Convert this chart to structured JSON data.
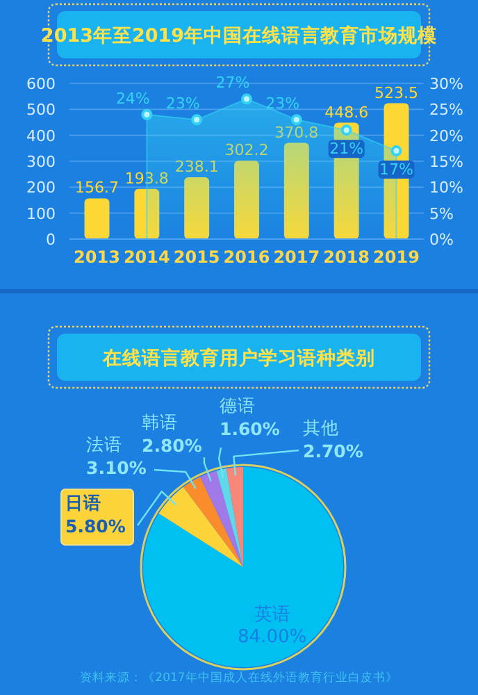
{
  "chart_data": [
    {
      "type": "bar",
      "title": "2013年至2019年中国在线语言教育市场规模",
      "categories": [
        "2013",
        "2014",
        "2015",
        "2016",
        "2017",
        "2018",
        "2019"
      ],
      "series": [
        {
          "type": "bar",
          "color": "#fdd835",
          "values": [
            156.7,
            193.8,
            238.1,
            302.2,
            370.8,
            448.6,
            523.5
          ]
        },
        {
          "type": "area",
          "axis": "y2",
          "color": "#34d3f4",
          "marker": "circle",
          "values": [
            null,
            24,
            23,
            27,
            23,
            21,
            17
          ],
          "value_labels": [
            null,
            "24%",
            "23%",
            "27%",
            "23%",
            "21%",
            "17%"
          ]
        }
      ],
      "ylim": [
        0,
        600
      ],
      "yticks": [
        0,
        100,
        200,
        300,
        400,
        500,
        600
      ],
      "y2lim": [
        0,
        30
      ],
      "y2ticks": [
        {
          "value": 0,
          "label": "0%"
        },
        {
          "value": 5,
          "label": "5%"
        },
        {
          "value": 10,
          "label": "10%"
        },
        {
          "value": 15,
          "label": "15%"
        },
        {
          "value": 20,
          "label": "20%"
        },
        {
          "value": 25,
          "label": "25%"
        },
        {
          "value": 30,
          "label": "30%"
        }
      ],
      "grid": "y",
      "data_labels": true
    },
    {
      "type": "pie",
      "title": "在线语言教育用户学习语种类别",
      "categories": [
        "英语",
        "日语",
        "法语",
        "韩语",
        "德语",
        "其他"
      ],
      "values": [
        84,
        5.8,
        3.1,
        2.8,
        1.6,
        2.7
      ],
      "colors": [
        "#00c0f2",
        "#fdd33a",
        "#fb8c2c",
        "#a178e8",
        "#5fd8ea",
        "#f58878"
      ],
      "value_labels": [
        "84.00%",
        "5.80%",
        "3.10%",
        "2.80%",
        "1.60%",
        "2.70%"
      ],
      "annotations": [
        "资料来源：《2017年中国成人在线外语教育行业白皮书》"
      ]
    }
  ]
}
